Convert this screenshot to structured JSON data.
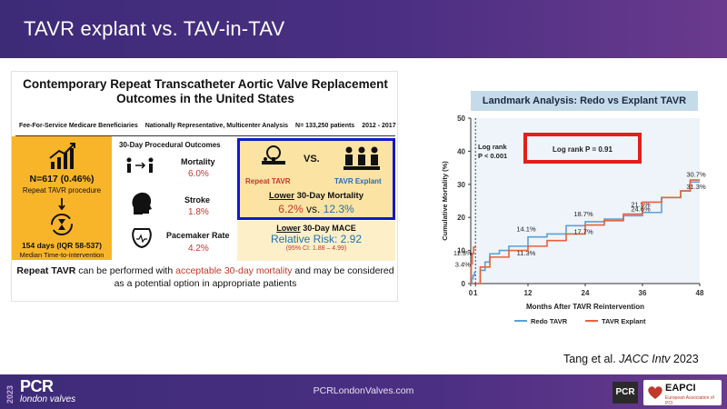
{
  "slide": {
    "title": "TAVR explant vs. TAV-in-TAV"
  },
  "illustration": {
    "title": "Contemporary Repeat Transcatheter Aortic Valve Replacement Outcomes in the United States",
    "info_items": [
      "Fee-For-Service Medicare Beneficiaries",
      "Nationally Representative, Multicenter Analysis",
      "N= 133,250 patients",
      "2012 - 2017"
    ],
    "left": {
      "count": "N=617 (0.46%)",
      "count_sub": "Repeat TAVR procedure",
      "days": "154 days (IQR 58-537)",
      "days_sub": "Median Time-to-intervention"
    },
    "outcomes": {
      "heading": "30-Day Procedural Outcomes",
      "items": [
        {
          "label": "Mortality",
          "value": "6.0%"
        },
        {
          "label": "Stroke",
          "value": "1.8%"
        },
        {
          "label": "Pacemaker Rate",
          "value": "4.2%"
        }
      ]
    },
    "compare": {
      "vs": "VS.",
      "left_label": "Repeat TAVR",
      "right_label": "TAVR Explant",
      "lower_prefix": "Lower",
      "lower_suffix": "30-Day Mortality",
      "val_left": "6.2%",
      "vs_small": "vs.",
      "val_right": "12.3%"
    },
    "mace": {
      "prefix": "Lower",
      "suffix": "30-Day MACE",
      "rr": "Relative Risk: 2.92",
      "ci": "(95% CI: 1.88 – 4.99)"
    },
    "conclusion": {
      "part1": "Repeat TAVR",
      "part2": " can be performed with ",
      "part3": "acceptable 30-day mortality",
      "part4": " and may be considered as a potential option in appropriate patients"
    }
  },
  "chart_data": {
    "type": "line",
    "title": "Landmark Analysis: Redo vs Explant TAVR",
    "xlabel": "Months After TAVR Reintervention",
    "ylabel": "Cumulative Mortality (%)",
    "xlim": [
      0,
      48
    ],
    "ylim": [
      0,
      50
    ],
    "xticks": [
      0,
      1,
      12,
      24,
      36,
      48
    ],
    "yticks": [
      0,
      10,
      20,
      30,
      40,
      50
    ],
    "landmark_x": 1,
    "annotations": {
      "logrank_early_1": "Log rank",
      "logrank_early_2": "P < 0.001",
      "logrank_late": "Log rank P = 0.91"
    },
    "series": [
      {
        "name": "Redo TAVR",
        "color": "#5aa0d6",
        "x": [
          0,
          0.2,
          0.5,
          0.8,
          1,
          1.1,
          2,
          3,
          4,
          6,
          8,
          12,
          16,
          20,
          24,
          28,
          32,
          36,
          40,
          44,
          46,
          48
        ],
        "y": [
          0,
          1.5,
          2.5,
          3.4,
          3.4,
          0,
          4,
          6.5,
          9,
          10,
          11.3,
          14.1,
          15,
          17.5,
          18.7,
          19.5,
          20.5,
          21.5,
          26,
          28,
          30.7,
          30.7
        ],
        "labels": [
          {
            "x": 1,
            "y": 3.4,
            "text": "3.4%"
          },
          {
            "x": 12,
            "y": 14.1,
            "text": "14.1%"
          },
          {
            "x": 24,
            "y": 18.7,
            "text": "18.7%"
          },
          {
            "x": 36,
            "y": 21.5,
            "text": "21.5%"
          },
          {
            "x": 48,
            "y": 30.7,
            "text": "30.7%"
          }
        ]
      },
      {
        "name": "TAVR Explant",
        "color": "#e8603c",
        "x": [
          0,
          0.1,
          0.3,
          0.6,
          1,
          1.1,
          2,
          4,
          8,
          12,
          16,
          20,
          24,
          28,
          32,
          36,
          40,
          44,
          46,
          48
        ],
        "y": [
          0,
          6,
          9,
          11,
          11.3,
          0,
          5,
          8,
          10,
          11.3,
          13,
          15,
          17.7,
          19,
          21,
          24.6,
          26,
          28,
          31.3,
          31.3
        ],
        "labels": [
          {
            "x": 1,
            "y": 11.3,
            "text": "11.3%"
          },
          {
            "x": 12,
            "y": 11.3,
            "text": "11.3%"
          },
          {
            "x": 24,
            "y": 17.7,
            "text": "17.7%"
          },
          {
            "x": 36,
            "y": 24.6,
            "text": "24.6%"
          },
          {
            "x": 48,
            "y": 31.3,
            "text": "31.3%"
          }
        ]
      }
    ]
  },
  "citation": {
    "text": "Tang et al. ",
    "journal": "JACC Intv",
    "year": " 2023"
  },
  "footer": {
    "year": "2023",
    "brand": "PCR",
    "brand_sub": "london valves",
    "site": "PCRLondonValves.com",
    "badge": "PCR",
    "partner": "EAPCI",
    "partner_sub": "European Association of PCI"
  },
  "colors": {
    "accent_purple": "#4b2f82",
    "highlight_blue": "#1219c8",
    "highlight_red": "#e0201b",
    "orange": "#f8b52a"
  }
}
